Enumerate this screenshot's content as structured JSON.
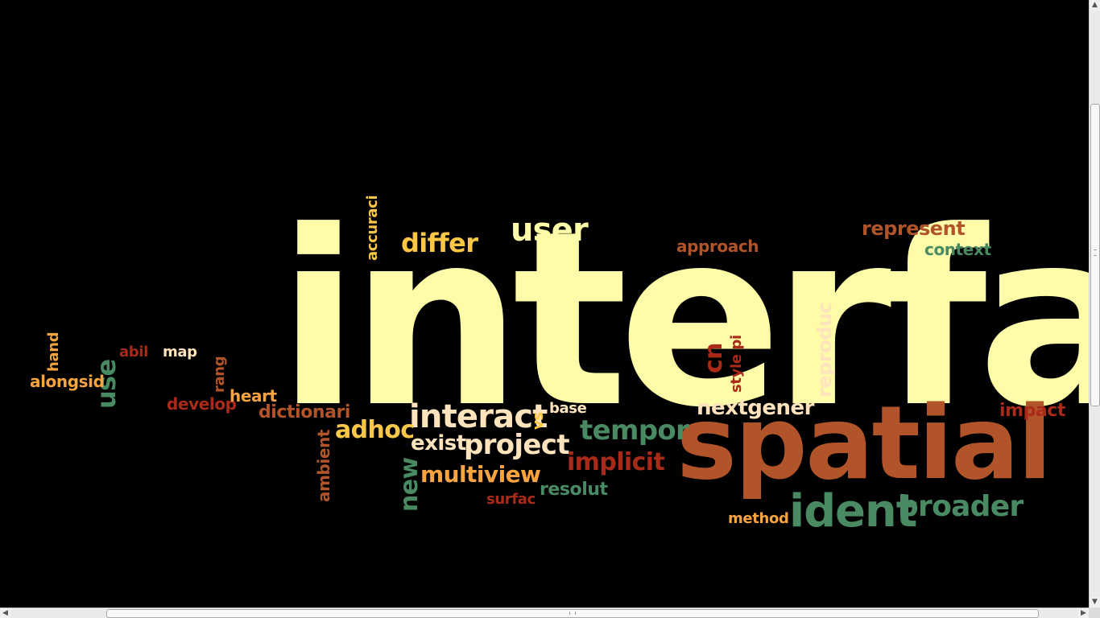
{
  "wordcloud": {
    "words": [
      {
        "text": "interfac"
      },
      {
        "text": "spatial"
      },
      {
        "text": "ident"
      },
      {
        "text": "broader"
      },
      {
        "text": "user"
      },
      {
        "text": "differ"
      },
      {
        "text": "accuraci"
      },
      {
        "text": "approach"
      },
      {
        "text": "represent"
      },
      {
        "text": "context"
      },
      {
        "text": "cn"
      },
      {
        "text": "style pi"
      },
      {
        "text": "reproduc"
      },
      {
        "text": "nextgener"
      },
      {
        "text": "impact"
      },
      {
        "text": "interact"
      },
      {
        "text": "vs"
      },
      {
        "text": "base"
      },
      {
        "text": "tempor"
      },
      {
        "text": "adhoc"
      },
      {
        "text": "exist"
      },
      {
        "text": "project"
      },
      {
        "text": "implicit"
      },
      {
        "text": "multiview"
      },
      {
        "text": "new"
      },
      {
        "text": "resolut"
      },
      {
        "text": "surfac"
      },
      {
        "text": "method"
      },
      {
        "text": "ambient"
      },
      {
        "text": "dictionari"
      },
      {
        "text": "develop"
      },
      {
        "text": "heart"
      },
      {
        "text": "rang"
      },
      {
        "text": "map"
      },
      {
        "text": "abil"
      },
      {
        "text": "use"
      },
      {
        "text": "hand"
      },
      {
        "text": "alongsid"
      }
    ]
  },
  "scrollbars": {
    "up_arrow": "▲",
    "down_arrow": "▼",
    "left_arrow": "◀",
    "right_arrow": "▶"
  },
  "icons": {
    "cursor": "mouse-pointer-icon"
  }
}
